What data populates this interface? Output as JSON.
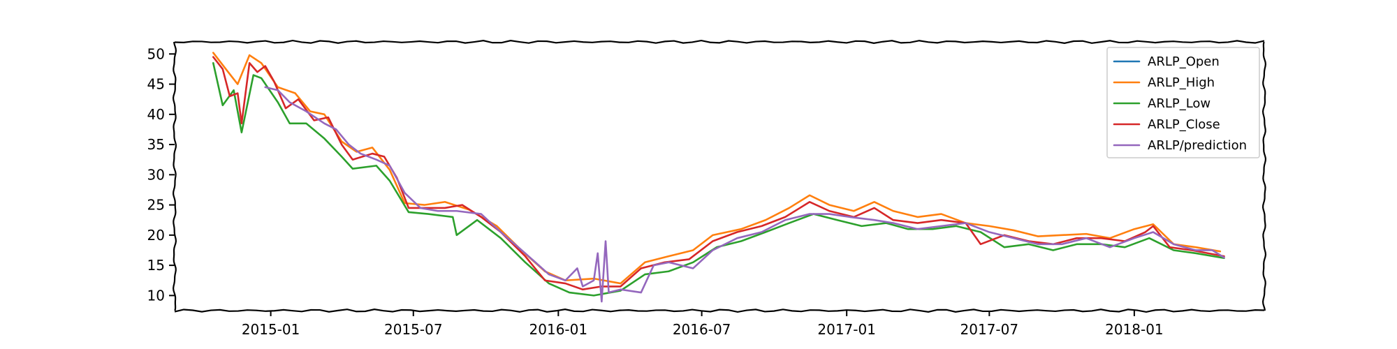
{
  "chart_data": {
    "type": "line",
    "title": "",
    "xlabel": "",
    "ylabel": "",
    "x_ticks": [
      "2015-01",
      "2015-07",
      "2016-01",
      "2016-07",
      "2017-01",
      "2017-07",
      "2018-01"
    ],
    "y_ticks": [
      10,
      15,
      20,
      25,
      30,
      35,
      40,
      45,
      50
    ],
    "xlim": [
      "2014-09-01",
      "2018-06-15"
    ],
    "ylim": [
      7.5,
      52
    ],
    "grid": false,
    "legend_position": "top-right",
    "series": [
      {
        "name": "ARLP_Open",
        "color": "#1f77b4",
        "points": []
      },
      {
        "name": "ARLP_High",
        "color": "#ff7f0e",
        "points": [
          [
            "2014-10-20",
            50.2
          ],
          [
            "2014-11-05",
            47.5
          ],
          [
            "2014-11-20",
            45.0
          ],
          [
            "2014-12-05",
            49.8
          ],
          [
            "2014-12-20",
            48.5
          ],
          [
            "2015-01-10",
            44.5
          ],
          [
            "2015-02-01",
            43.5
          ],
          [
            "2015-02-20",
            40.5
          ],
          [
            "2015-03-10",
            40.0
          ],
          [
            "2015-04-01",
            35.5
          ],
          [
            "2015-04-20",
            33.8
          ],
          [
            "2015-05-10",
            34.5
          ],
          [
            "2015-06-01",
            30.8
          ],
          [
            "2015-06-20",
            25.3
          ],
          [
            "2015-07-15",
            25.0
          ],
          [
            "2015-08-10",
            25.5
          ],
          [
            "2015-09-10",
            24.2
          ],
          [
            "2015-10-15",
            21.5
          ],
          [
            "2015-11-15",
            17.5
          ],
          [
            "2015-12-15",
            14.0
          ],
          [
            "2016-01-10",
            12.5
          ],
          [
            "2016-02-15",
            12.8
          ],
          [
            "2016-03-20",
            12.0
          ],
          [
            "2016-04-20",
            15.5
          ],
          [
            "2016-05-20",
            16.5
          ],
          [
            "2016-06-20",
            17.5
          ],
          [
            "2016-07-15",
            20.0
          ],
          [
            "2016-08-20",
            21.0
          ],
          [
            "2016-09-20",
            22.5
          ],
          [
            "2016-10-20",
            24.5
          ],
          [
            "2016-11-15",
            26.6
          ],
          [
            "2016-12-10",
            25.0
          ],
          [
            "2017-01-10",
            24.0
          ],
          [
            "2017-02-05",
            25.5
          ],
          [
            "2017-03-01",
            24.0
          ],
          [
            "2017-04-01",
            23.0
          ],
          [
            "2017-05-01",
            23.5
          ],
          [
            "2017-06-01",
            22.0
          ],
          [
            "2017-07-01",
            21.5
          ],
          [
            "2017-08-01",
            20.8
          ],
          [
            "2017-09-01",
            19.8
          ],
          [
            "2017-10-01",
            20.0
          ],
          [
            "2017-11-01",
            20.2
          ],
          [
            "2017-12-01",
            19.5
          ],
          [
            "2018-01-01",
            21.0
          ],
          [
            "2018-01-25",
            21.8
          ],
          [
            "2018-02-20",
            18.5
          ],
          [
            "2018-03-20",
            18.0
          ],
          [
            "2018-04-20",
            17.3
          ]
        ]
      },
      {
        "name": "ARLP_Low",
        "color": "#2ca02c",
        "points": [
          [
            "2014-10-20",
            48.5
          ],
          [
            "2014-11-01",
            41.5
          ],
          [
            "2014-11-15",
            44.0
          ],
          [
            "2014-11-25",
            37.0
          ],
          [
            "2014-12-10",
            46.5
          ],
          [
            "2014-12-20",
            46.0
          ],
          [
            "2015-01-10",
            42.0
          ],
          [
            "2015-01-25",
            38.5
          ],
          [
            "2015-02-15",
            38.5
          ],
          [
            "2015-03-10",
            36.0
          ],
          [
            "2015-04-01",
            33.0
          ],
          [
            "2015-04-15",
            31.0
          ],
          [
            "2015-05-15",
            31.5
          ],
          [
            "2015-06-01",
            29.0
          ],
          [
            "2015-06-25",
            23.8
          ],
          [
            "2015-07-20",
            23.5
          ],
          [
            "2015-08-20",
            23.0
          ],
          [
            "2015-08-25",
            20.0
          ],
          [
            "2015-09-20",
            22.5
          ],
          [
            "2015-10-20",
            19.5
          ],
          [
            "2015-11-20",
            15.5
          ],
          [
            "2015-12-20",
            12.0
          ],
          [
            "2016-01-15",
            10.5
          ],
          [
            "2016-02-15",
            10.0
          ],
          [
            "2016-03-20",
            10.8
          ],
          [
            "2016-04-20",
            13.5
          ],
          [
            "2016-05-20",
            14.0
          ],
          [
            "2016-06-20",
            15.5
          ],
          [
            "2016-07-20",
            18.0
          ],
          [
            "2016-08-20",
            19.0
          ],
          [
            "2016-09-20",
            20.5
          ],
          [
            "2016-10-20",
            22.0
          ],
          [
            "2016-11-20",
            23.5
          ],
          [
            "2016-12-20",
            22.5
          ],
          [
            "2017-01-20",
            21.5
          ],
          [
            "2017-02-20",
            22.0
          ],
          [
            "2017-03-20",
            21.0
          ],
          [
            "2017-04-20",
            21.0
          ],
          [
            "2017-05-20",
            21.5
          ],
          [
            "2017-06-20",
            20.5
          ],
          [
            "2017-07-20",
            18.0
          ],
          [
            "2017-08-20",
            18.5
          ],
          [
            "2017-09-20",
            17.5
          ],
          [
            "2017-10-20",
            18.5
          ],
          [
            "2017-11-20",
            18.5
          ],
          [
            "2017-12-20",
            18.0
          ],
          [
            "2018-01-20",
            19.5
          ],
          [
            "2018-02-20",
            17.5
          ],
          [
            "2018-03-20",
            17.0
          ],
          [
            "2018-04-25",
            16.2
          ]
        ]
      },
      {
        "name": "ARLP_Close",
        "color": "#d62728",
        "points": [
          [
            "2014-10-20",
            49.5
          ],
          [
            "2014-11-01",
            47.5
          ],
          [
            "2014-11-10",
            43.0
          ],
          [
            "2014-11-20",
            43.5
          ],
          [
            "2014-11-25",
            38.5
          ],
          [
            "2014-12-05",
            48.5
          ],
          [
            "2014-12-15",
            47.0
          ],
          [
            "2014-12-25",
            48.0
          ],
          [
            "2015-01-05",
            45.5
          ],
          [
            "2015-01-20",
            41.0
          ],
          [
            "2015-02-05",
            42.5
          ],
          [
            "2015-02-25",
            39.0
          ],
          [
            "2015-03-15",
            39.5
          ],
          [
            "2015-04-01",
            35.0
          ],
          [
            "2015-04-15",
            32.5
          ],
          [
            "2015-05-10",
            33.5
          ],
          [
            "2015-05-25",
            33.0
          ],
          [
            "2015-06-10",
            29.5
          ],
          [
            "2015-06-25",
            24.5
          ],
          [
            "2015-07-15",
            24.5
          ],
          [
            "2015-08-10",
            24.5
          ],
          [
            "2015-09-01",
            25.0
          ],
          [
            "2015-09-25",
            23.0
          ],
          [
            "2015-10-20",
            20.5
          ],
          [
            "2015-11-20",
            16.5
          ],
          [
            "2015-12-15",
            12.5
          ],
          [
            "2016-01-10",
            12.0
          ],
          [
            "2016-02-01",
            11.0
          ],
          [
            "2016-02-25",
            11.5
          ],
          [
            "2016-03-20",
            11.5
          ],
          [
            "2016-04-15",
            14.5
          ],
          [
            "2016-05-15",
            15.5
          ],
          [
            "2016-06-15",
            16.0
          ],
          [
            "2016-07-15",
            19.0
          ],
          [
            "2016-08-15",
            20.5
          ],
          [
            "2016-09-15",
            21.5
          ],
          [
            "2016-10-15",
            23.0
          ],
          [
            "2016-11-15",
            25.5
          ],
          [
            "2016-12-10",
            24.0
          ],
          [
            "2017-01-10",
            23.0
          ],
          [
            "2017-02-05",
            24.5
          ],
          [
            "2017-03-01",
            22.5
          ],
          [
            "2017-04-01",
            22.0
          ],
          [
            "2017-05-01",
            22.5
          ],
          [
            "2017-06-01",
            22.0
          ],
          [
            "2017-06-20",
            18.5
          ],
          [
            "2017-07-20",
            20.0
          ],
          [
            "2017-08-20",
            19.0
          ],
          [
            "2017-09-20",
            18.5
          ],
          [
            "2017-10-20",
            19.5
          ],
          [
            "2017-11-20",
            19.5
          ],
          [
            "2017-12-20",
            19.0
          ],
          [
            "2018-01-15",
            20.5
          ],
          [
            "2018-01-25",
            21.5
          ],
          [
            "2018-02-15",
            18.0
          ],
          [
            "2018-03-15",
            17.5
          ],
          [
            "2018-04-25",
            16.5
          ]
        ]
      },
      {
        "name": "ARLP/prediction",
        "color": "#9467bd",
        "points": [
          [
            "2014-12-25",
            44.5
          ],
          [
            "2015-01-10",
            44.0
          ],
          [
            "2015-01-25",
            42.0
          ],
          [
            "2015-02-15",
            40.5
          ],
          [
            "2015-03-10",
            38.5
          ],
          [
            "2015-03-25",
            37.5
          ],
          [
            "2015-04-10",
            35.0
          ],
          [
            "2015-04-25",
            33.5
          ],
          [
            "2015-05-15",
            32.5
          ],
          [
            "2015-06-01",
            31.5
          ],
          [
            "2015-06-20",
            27.0
          ],
          [
            "2015-07-10",
            24.5
          ],
          [
            "2015-08-01",
            24.0
          ],
          [
            "2015-08-25",
            24.0
          ],
          [
            "2015-09-25",
            23.5
          ],
          [
            "2015-10-20",
            20.5
          ],
          [
            "2015-11-20",
            17.0
          ],
          [
            "2015-12-20",
            13.5
          ],
          [
            "2016-01-10",
            12.5
          ],
          [
            "2016-01-25",
            14.5
          ],
          [
            "2016-02-01",
            11.5
          ],
          [
            "2016-02-15",
            12.5
          ],
          [
            "2016-02-20",
            17.0
          ],
          [
            "2016-02-25",
            9.0
          ],
          [
            "2016-03-01",
            19.0
          ],
          [
            "2016-03-05",
            10.5
          ],
          [
            "2016-03-20",
            11.0
          ],
          [
            "2016-04-15",
            10.5
          ],
          [
            "2016-05-01",
            15.0
          ],
          [
            "2016-05-20",
            15.5
          ],
          [
            "2016-06-20",
            14.5
          ],
          [
            "2016-07-15",
            17.5
          ],
          [
            "2016-08-15",
            19.5
          ],
          [
            "2016-09-15",
            20.5
          ],
          [
            "2016-10-15",
            22.5
          ],
          [
            "2016-11-15",
            23.5
          ],
          [
            "2016-12-10",
            23.5
          ],
          [
            "2017-01-05",
            23.0
          ],
          [
            "2017-02-05",
            22.5
          ],
          [
            "2017-03-01",
            22.0
          ],
          [
            "2017-04-01",
            21.0
          ],
          [
            "2017-05-01",
            21.5
          ],
          [
            "2017-06-01",
            22.0
          ],
          [
            "2017-07-01",
            20.5
          ],
          [
            "2017-08-01",
            19.5
          ],
          [
            "2017-09-01",
            18.5
          ],
          [
            "2017-10-01",
            18.5
          ],
          [
            "2017-11-01",
            19.5
          ],
          [
            "2017-12-01",
            18.0
          ],
          [
            "2018-01-01",
            19.5
          ],
          [
            "2018-01-25",
            20.5
          ],
          [
            "2018-02-20",
            18.5
          ],
          [
            "2018-03-20",
            17.5
          ],
          [
            "2018-04-10",
            17.5
          ],
          [
            "2018-04-25",
            16.3
          ]
        ]
      }
    ]
  }
}
